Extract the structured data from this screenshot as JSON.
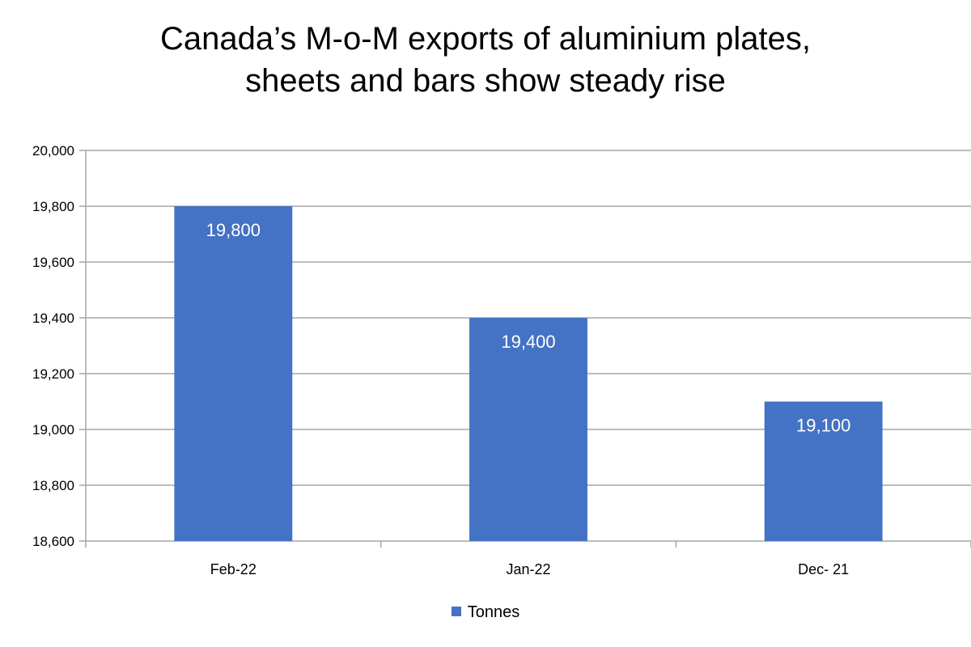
{
  "chart_data": {
    "type": "bar",
    "title_lines": [
      "Canada’s M-o-M exports of aluminium plates,",
      "sheets and bars show steady rise"
    ],
    "categories": [
      "Feb-22",
      "Jan-22",
      "Dec- 21"
    ],
    "series": [
      {
        "name": "Tonnes",
        "values": [
          19800,
          19400,
          19100
        ],
        "data_labels": [
          "19,800",
          "19,400",
          "19,100"
        ],
        "color": "#4472c4"
      }
    ],
    "ylim": [
      18600,
      20000
    ],
    "y_ticks": [
      18600,
      18800,
      19000,
      19200,
      19400,
      19600,
      19800,
      20000
    ],
    "y_tick_labels": [
      "18,600",
      "18,800",
      "19,000",
      "19,200",
      "19,400",
      "19,600",
      "19,800",
      "20,000"
    ],
    "grid": true,
    "legend_position": "bottom",
    "colors": {
      "bar": "#4472c4",
      "gridline": "#a6a6a6",
      "axis": "#a6a6a6",
      "data_label": "#ffffff"
    }
  }
}
